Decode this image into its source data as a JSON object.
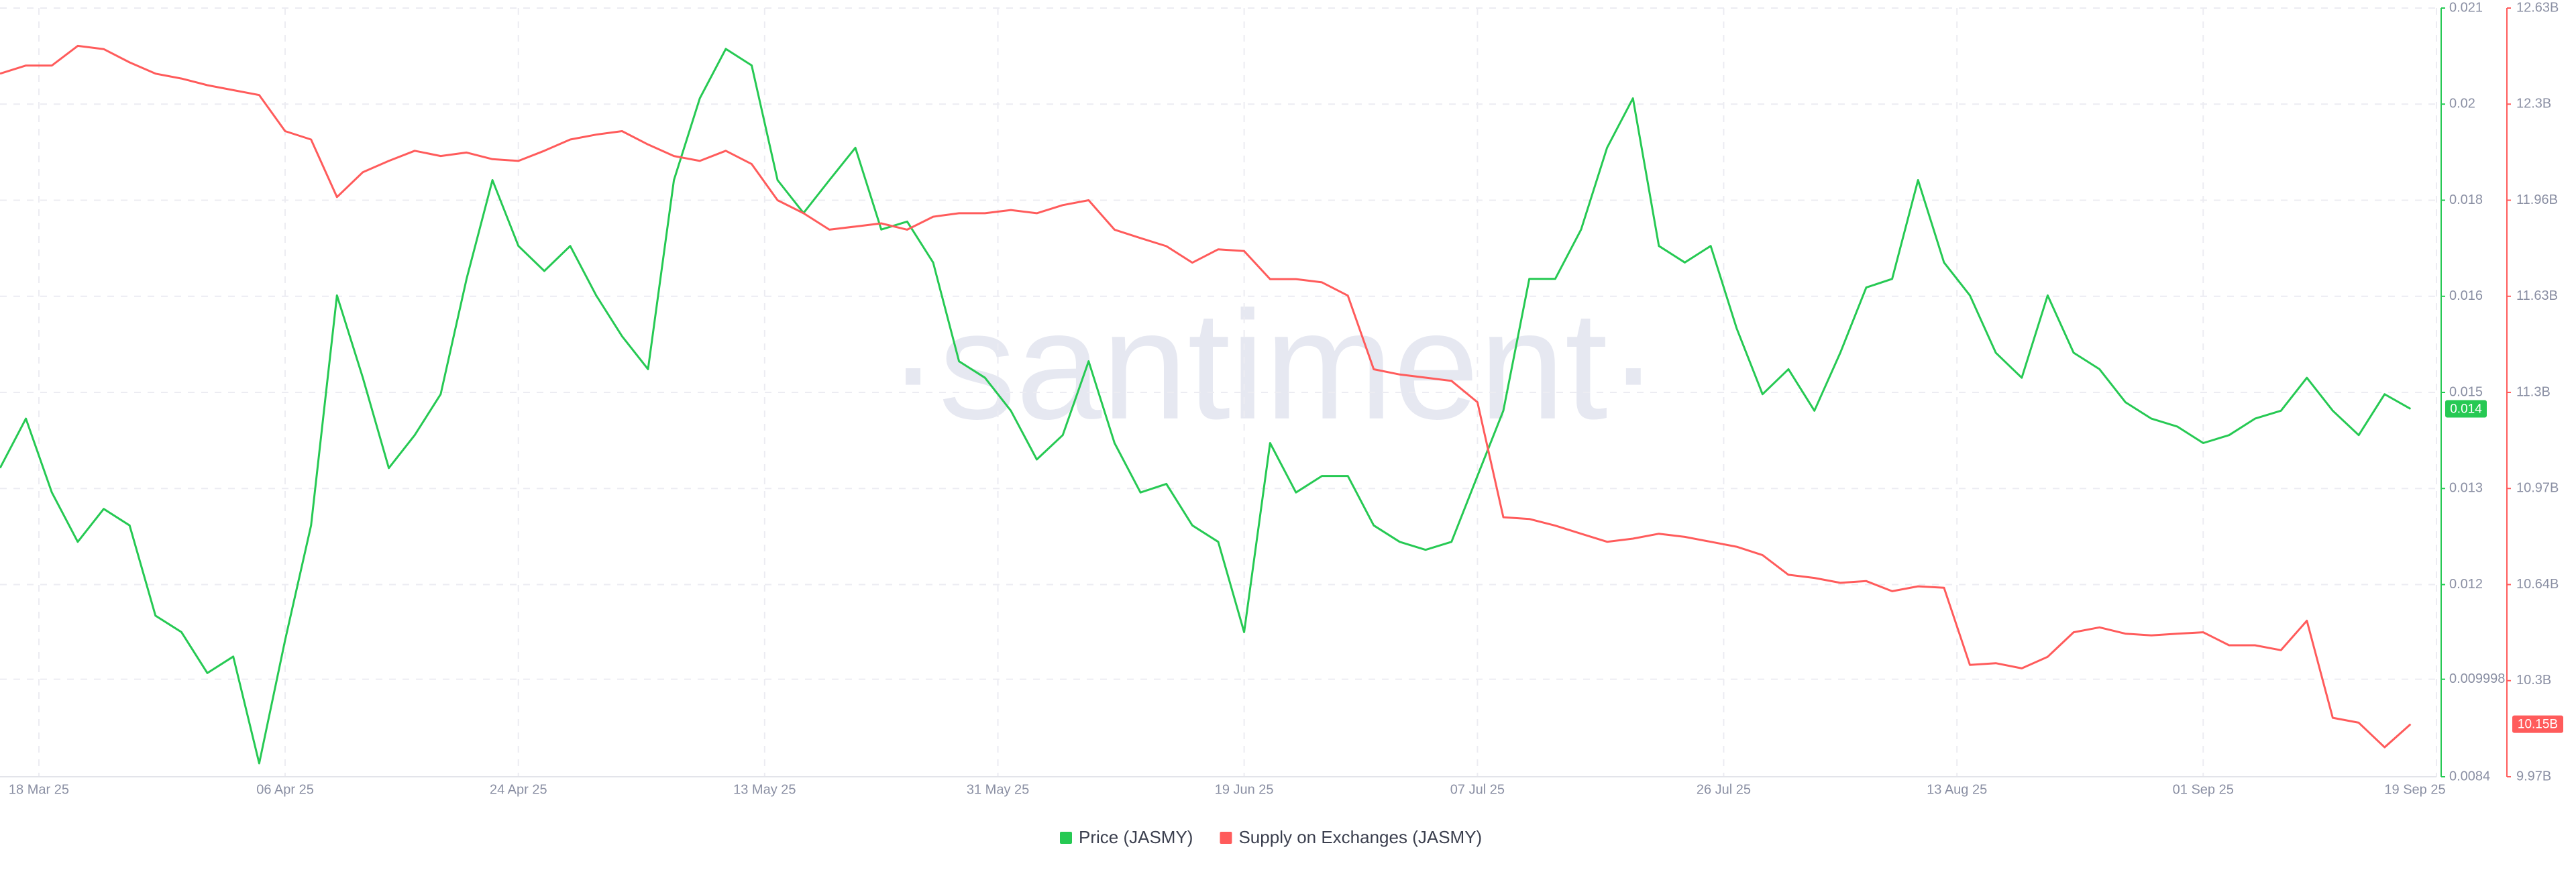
{
  "chart_data": {
    "type": "line",
    "watermark": "·santiment·",
    "x": [
      "2025-03-15",
      "2025-03-17",
      "2025-03-19",
      "2025-03-21",
      "2025-03-23",
      "2025-03-25",
      "2025-03-27",
      "2025-03-29",
      "2025-03-31",
      "2025-04-02",
      "2025-04-04",
      "2025-04-06",
      "2025-04-08",
      "2025-04-10",
      "2025-04-12",
      "2025-04-14",
      "2025-04-16",
      "2025-04-18",
      "2025-04-20",
      "2025-04-22",
      "2025-04-24",
      "2025-04-26",
      "2025-04-28",
      "2025-04-30",
      "2025-05-02",
      "2025-05-04",
      "2025-05-06",
      "2025-05-08",
      "2025-05-10",
      "2025-05-12",
      "2025-05-14",
      "2025-05-16",
      "2025-05-18",
      "2025-05-20",
      "2025-05-22",
      "2025-05-24",
      "2025-05-26",
      "2025-05-28",
      "2025-05-30",
      "2025-06-01",
      "2025-06-03",
      "2025-06-05",
      "2025-06-07",
      "2025-06-09",
      "2025-06-11",
      "2025-06-13",
      "2025-06-15",
      "2025-06-17",
      "2025-06-19",
      "2025-06-21",
      "2025-06-23",
      "2025-06-25",
      "2025-06-27",
      "2025-06-29",
      "2025-07-01",
      "2025-07-03",
      "2025-07-05",
      "2025-07-07",
      "2025-07-09",
      "2025-07-11",
      "2025-07-13",
      "2025-07-15",
      "2025-07-17",
      "2025-07-19",
      "2025-07-21",
      "2025-07-23",
      "2025-07-25",
      "2025-07-27",
      "2025-07-29",
      "2025-07-31",
      "2025-08-02",
      "2025-08-04",
      "2025-08-06",
      "2025-08-08",
      "2025-08-10",
      "2025-08-12",
      "2025-08-14",
      "2025-08-16",
      "2025-08-18",
      "2025-08-20",
      "2025-08-22",
      "2025-08-24",
      "2025-08-26",
      "2025-08-28",
      "2025-08-30",
      "2025-09-01",
      "2025-09-03",
      "2025-09-05",
      "2025-09-07",
      "2025-09-09",
      "2025-09-11",
      "2025-09-13",
      "2025-09-15",
      "2025-09-17"
    ],
    "xlim": [
      "2025-03-15",
      "2025-09-19"
    ],
    "xticks": [
      {
        "value": "2025-03-18",
        "label": "18 Mar 25"
      },
      {
        "value": "2025-04-06",
        "label": "06 Apr 25"
      },
      {
        "value": "2025-04-24",
        "label": "24 Apr 25"
      },
      {
        "value": "2025-05-13",
        "label": "13 May 25"
      },
      {
        "value": "2025-05-31",
        "label": "31 May 25"
      },
      {
        "value": "2025-06-19",
        "label": "19 Jun 25"
      },
      {
        "value": "2025-07-07",
        "label": "07 Jul 25"
      },
      {
        "value": "2025-07-26",
        "label": "26 Jul 25"
      },
      {
        "value": "2025-08-13",
        "label": "13 Aug 25"
      },
      {
        "value": "2025-09-01",
        "label": "01 Sep 25"
      },
      {
        "value": "2025-09-19",
        "label": "19 Sep 25"
      }
    ],
    "ylim": [
      0.0084,
      0.021
    ],
    "yticks": [
      0.0084,
      0.009998,
      {
        "value": 0.01155,
        "label": "0.012"
      },
      {
        "value": 0.013125,
        "label": "0.013"
      },
      {
        "value": 0.0147,
        "label": "0.015"
      },
      {
        "value": 0.016275,
        "label": "0.016"
      },
      {
        "value": 0.01785,
        "label": "0.018"
      },
      {
        "value": 0.019425,
        "label": "0.02"
      },
      0.021
    ],
    "y2lim": [
      9.97,
      12.63
    ],
    "y2ticks": [
      {
        "value": 9.97,
        "label": "9.97B"
      },
      {
        "value": 10.3025,
        "label": "10.3B"
      },
      {
        "value": 10.635,
        "label": "10.64B"
      },
      {
        "value": 10.9675,
        "label": "10.97B"
      },
      {
        "value": 11.3,
        "label": "11.3B"
      },
      {
        "value": 11.6325,
        "label": "11.63B"
      },
      {
        "value": 11.965,
        "label": "11.96B"
      },
      {
        "value": 12.2975,
        "label": "12.3B"
      },
      {
        "value": 12.63,
        "label": "12.63B"
      }
    ],
    "grid": true,
    "series": [
      {
        "name": "Price (JASMY)",
        "color": "#26c953",
        "axis": "y",
        "last_label": "0.014",
        "values": [
          0.01346,
          0.01427,
          0.01306,
          0.01225,
          0.01279,
          0.01252,
          0.01104,
          0.01077,
          0.0101,
          0.01037,
          0.00862,
          0.01064,
          0.01252,
          0.01629,
          0.01494,
          0.01346,
          0.014,
          0.01467,
          0.01656,
          0.01818,
          0.0171,
          0.01669,
          0.0171,
          0.01629,
          0.01562,
          0.01508,
          0.01818,
          0.01952,
          0.02033,
          0.02006,
          0.01818,
          0.01764,
          0.01818,
          0.01871,
          0.01737,
          0.0175,
          0.01683,
          0.01521,
          0.01494,
          0.0144,
          0.0136,
          0.014,
          0.01521,
          0.01387,
          0.01306,
          0.0132,
          0.01252,
          0.01225,
          0.01077,
          0.01387,
          0.01306,
          0.01333,
          0.01333,
          0.01252,
          0.01225,
          0.01212,
          0.01225,
          0.01333,
          0.0144,
          0.01656,
          0.01656,
          0.01737,
          0.01871,
          0.01952,
          0.0171,
          0.01683,
          0.0171,
          0.01575,
          0.01467,
          0.01508,
          0.0144,
          0.01535,
          0.01642,
          0.01656,
          0.01818,
          0.01683,
          0.01629,
          0.01535,
          0.01494,
          0.01629,
          0.01535,
          0.01508,
          0.01454,
          0.01427,
          0.01414,
          0.01387,
          0.014,
          0.01427,
          0.0144,
          0.01494,
          0.0144,
          0.014,
          0.01467,
          0.01443
        ]
      },
      {
        "name": "Supply on Exchanges (JASMY)",
        "color": "#ff5b5b",
        "axis": "y2",
        "last_label": "10.15B",
        "values": [
          12.403,
          12.431,
          12.431,
          12.499,
          12.488,
          12.442,
          12.403,
          12.386,
          12.363,
          12.346,
          12.329,
          12.204,
          12.175,
          11.976,
          12.062,
          12.101,
          12.136,
          12.118,
          12.13,
          12.107,
          12.101,
          12.136,
          12.175,
          12.192,
          12.204,
          12.158,
          12.118,
          12.101,
          12.136,
          12.09,
          11.965,
          11.92,
          11.863,
          11.874,
          11.885,
          11.863,
          11.908,
          11.92,
          11.92,
          11.931,
          11.92,
          11.948,
          11.965,
          11.863,
          11.834,
          11.806,
          11.749,
          11.795,
          11.789,
          11.692,
          11.692,
          11.681,
          11.635,
          11.38,
          11.362,
          11.351,
          11.34,
          11.266,
          10.868,
          10.862,
          10.839,
          10.811,
          10.783,
          10.794,
          10.811,
          10.8,
          10.783,
          10.766,
          10.737,
          10.669,
          10.658,
          10.641,
          10.647,
          10.612,
          10.629,
          10.624,
          10.357,
          10.363,
          10.345,
          10.385,
          10.47,
          10.487,
          10.465,
          10.459,
          10.465,
          10.47,
          10.425,
          10.425,
          10.408,
          10.51,
          10.174,
          10.157,
          10.072,
          10.152
        ]
      }
    ]
  }
}
